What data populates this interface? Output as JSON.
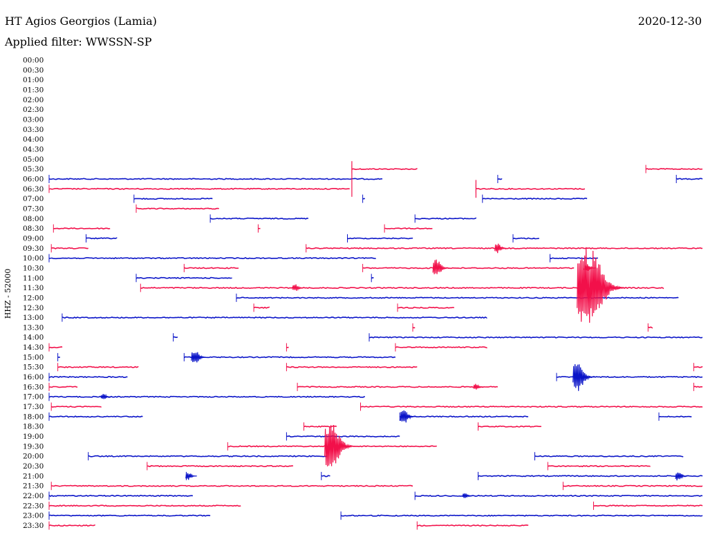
{
  "header": {
    "station": "HT Agios Georgios (Lamia)",
    "date": "2020-12-30",
    "filter": "Applied filter: WWSSN-SP"
  },
  "colors": {
    "blue": "#0a14c8",
    "red": "#f2104a",
    "text": "#000000"
  },
  "chart_data": {
    "type": "line",
    "ylabel": "HHZ - 52000",
    "row_labels": [
      "00:00",
      "00:30",
      "01:00",
      "01:30",
      "02:00",
      "02:30",
      "03:00",
      "03:30",
      "04:00",
      "04:30",
      "05:00",
      "05:30",
      "06:00",
      "06:30",
      "07:00",
      "07:30",
      "08:00",
      "08:30",
      "09:00",
      "09:30",
      "10:00",
      "10:30",
      "11:00",
      "11:30",
      "12:00",
      "12:30",
      "13:00",
      "13:30",
      "14:00",
      "14:30",
      "15:00",
      "15:30",
      "16:00",
      "16:30",
      "17:00",
      "17:30",
      "18:00",
      "18:30",
      "19:00",
      "19:30",
      "20:00",
      "20:30",
      "21:00",
      "21:30",
      "22:00",
      "22:30",
      "23:00",
      "23:30"
    ],
    "x_range_minutes": [
      0,
      30
    ],
    "series": [
      {
        "row": "05:30",
        "segments": [
          [
            13.9,
            16.9
          ],
          [
            27.4,
            30
          ]
        ]
      },
      {
        "row": "06:00",
        "segments": [
          [
            0,
            15.3
          ],
          [
            20.6,
            20.8
          ],
          [
            28.8,
            30
          ]
        ]
      },
      {
        "row": "06:30",
        "segments": [
          [
            0,
            13.8
          ],
          [
            19.6,
            24.6
          ]
        ]
      },
      {
        "row": "07:00",
        "segments": [
          [
            3.9,
            7.5
          ],
          [
            14.4,
            14.5
          ],
          [
            19.9,
            24.7
          ]
        ]
      },
      {
        "row": "07:30",
        "segments": [
          [
            4.0,
            7.8
          ]
        ]
      },
      {
        "row": "08:00",
        "segments": [
          [
            7.4,
            11.9
          ],
          [
            16.8,
            19.6
          ]
        ]
      },
      {
        "row": "08:30",
        "segments": [
          [
            0.2,
            2.8
          ],
          [
            9.6,
            9.7
          ],
          [
            15.4,
            17.6
          ]
        ]
      },
      {
        "row": "09:00",
        "segments": [
          [
            1.7,
            3.1
          ],
          [
            13.7,
            16.7
          ],
          [
            21.3,
            22.5
          ]
        ]
      },
      {
        "row": "09:30",
        "segments": [
          [
            0.1,
            1.8
          ],
          [
            11.8,
            30
          ]
        ]
      },
      {
        "row": "10:00",
        "segments": [
          [
            0,
            15.0
          ],
          [
            23.0,
            25.2
          ]
        ]
      },
      {
        "row": "10:30",
        "segments": [
          [
            6.2,
            8.7
          ],
          [
            14.4,
            24.1
          ]
        ]
      },
      {
        "row": "11:00",
        "segments": [
          [
            4.0,
            8.4
          ],
          [
            14.8,
            14.9
          ]
        ]
      },
      {
        "row": "11:30",
        "segments": [
          [
            4.2,
            28.2
          ]
        ]
      },
      {
        "row": "12:00",
        "segments": [
          [
            8.6,
            28.9
          ]
        ]
      },
      {
        "row": "12:30",
        "segments": [
          [
            9.4,
            10.1
          ],
          [
            16.0,
            18.6
          ]
        ]
      },
      {
        "row": "13:00",
        "segments": [
          [
            0.6,
            20.1
          ]
        ]
      },
      {
        "row": "13:30",
        "segments": [
          [
            16.7,
            16.8
          ],
          [
            27.5,
            27.7
          ]
        ]
      },
      {
        "row": "14:00",
        "segments": [
          [
            5.7,
            5.9
          ],
          [
            14.7,
            30
          ]
        ]
      },
      {
        "row": "14:30",
        "segments": [
          [
            0,
            0.6
          ],
          [
            10.9,
            11.0
          ],
          [
            15.9,
            20.1
          ]
        ]
      },
      {
        "row": "15:00",
        "segments": [
          [
            0.4,
            0.5
          ],
          [
            6.2,
            15.9
          ]
        ]
      },
      {
        "row": "15:30",
        "segments": [
          [
            0.4,
            4.1
          ],
          [
            10.9,
            16.9
          ],
          [
            29.6,
            30
          ]
        ]
      },
      {
        "row": "16:00",
        "segments": [
          [
            0,
            3.6
          ],
          [
            23.3,
            30
          ]
        ]
      },
      {
        "row": "16:30",
        "segments": [
          [
            0,
            1.3
          ],
          [
            11.4,
            20.6
          ],
          [
            29.6,
            30
          ]
        ]
      },
      {
        "row": "17:00",
        "segments": [
          [
            0,
            14.5
          ]
        ]
      },
      {
        "row": "17:30",
        "segments": [
          [
            0.1,
            2.4
          ],
          [
            14.3,
            30
          ]
        ]
      },
      {
        "row": "18:00",
        "segments": [
          [
            0,
            4.3
          ],
          [
            16.1,
            22.0
          ],
          [
            28.0,
            29.5
          ]
        ]
      },
      {
        "row": "18:30",
        "segments": [
          [
            11.7,
            13.2
          ],
          [
            19.7,
            22.6
          ]
        ]
      },
      {
        "row": "19:00",
        "segments": [
          [
            10.9,
            16.1
          ]
        ]
      },
      {
        "row": "19:30",
        "segments": [
          [
            8.2,
            17.8
          ]
        ]
      },
      {
        "row": "20:00",
        "segments": [
          [
            1.8,
            12.8
          ],
          [
            22.3,
            29.1
          ]
        ]
      },
      {
        "row": "20:30",
        "segments": [
          [
            4.5,
            11.2
          ],
          [
            22.9,
            27.6
          ]
        ]
      },
      {
        "row": "21:00",
        "segments": [
          [
            6.3,
            6.5
          ],
          [
            12.5,
            12.9
          ],
          [
            19.7,
            30
          ]
        ]
      },
      {
        "row": "21:30",
        "segments": [
          [
            0.1,
            16.7
          ],
          [
            23.6,
            30
          ]
        ]
      },
      {
        "row": "22:00",
        "segments": [
          [
            0,
            6.6
          ],
          [
            16.8,
            30
          ]
        ]
      },
      {
        "row": "22:30",
        "segments": [
          [
            0,
            8.8
          ],
          [
            25.0,
            30
          ]
        ]
      },
      {
        "row": "23:00",
        "segments": [
          [
            0,
            7.4
          ],
          [
            13.4,
            30
          ]
        ]
      },
      {
        "row": "23:30",
        "segments": [
          [
            0,
            2.1
          ],
          [
            16.9,
            22.0
          ]
        ]
      }
    ],
    "events": [
      {
        "row": "06:00",
        "minute": 13.9,
        "amp": 1.8,
        "color": "red",
        "kind": "spike"
      },
      {
        "row": "06:30",
        "minute": 19.6,
        "amp": 0.9,
        "color": "red",
        "kind": "spike"
      },
      {
        "row": "09:30",
        "minute": 20.6,
        "amp": 0.5,
        "color": "red",
        "kind": "burst"
      },
      {
        "row": "10:30",
        "minute": 17.8,
        "amp": 0.9,
        "color": "red",
        "kind": "burst"
      },
      {
        "row": "10:30",
        "minute": 24.7,
        "amp": 0.4,
        "color": "red",
        "kind": "burst"
      },
      {
        "row": "11:30",
        "minute": 11.3,
        "amp": 0.4,
        "color": "red",
        "kind": "burst"
      },
      {
        "row": "11:30",
        "minute": 24.8,
        "amp": 4.3,
        "color": "red",
        "kind": "burst"
      },
      {
        "row": "15:00",
        "minute": 6.7,
        "amp": 0.8,
        "color": "blue",
        "kind": "burst"
      },
      {
        "row": "16:00",
        "minute": 24.3,
        "amp": 1.5,
        "color": "blue",
        "kind": "burst"
      },
      {
        "row": "16:30",
        "minute": 19.6,
        "amp": 0.3,
        "color": "red",
        "kind": "burst"
      },
      {
        "row": "17:00",
        "minute": 2.5,
        "amp": 0.3,
        "color": "blue",
        "kind": "burst"
      },
      {
        "row": "18:00",
        "minute": 16.3,
        "amp": 0.8,
        "color": "blue",
        "kind": "burst"
      },
      {
        "row": "19:30",
        "minute": 13.0,
        "amp": 2.4,
        "color": "red",
        "kind": "burst"
      },
      {
        "row": "21:00",
        "minute": 6.4,
        "amp": 0.4,
        "color": "blue",
        "kind": "burst"
      },
      {
        "row": "21:00",
        "minute": 28.9,
        "amp": 0.5,
        "color": "blue",
        "kind": "burst"
      },
      {
        "row": "22:00",
        "minute": 19.1,
        "amp": 0.3,
        "color": "blue",
        "kind": "burst"
      }
    ]
  }
}
